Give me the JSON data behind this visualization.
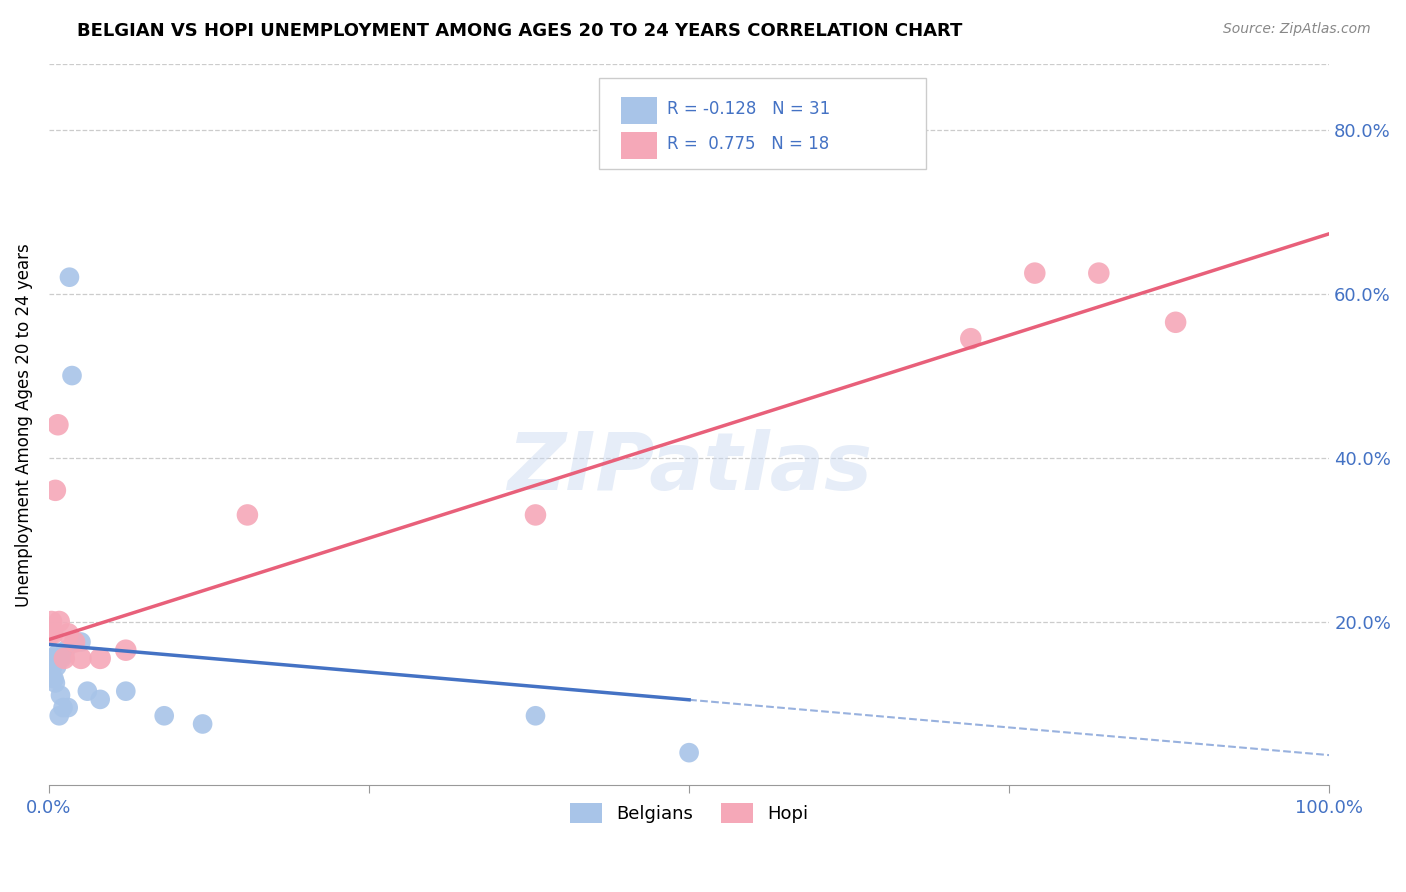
{
  "title": "BELGIAN VS HOPI UNEMPLOYMENT AMONG AGES 20 TO 24 YEARS CORRELATION CHART",
  "source": "Source: ZipAtlas.com",
  "ylabel": "Unemployment Among Ages 20 to 24 years",
  "xlim": [
    0.0,
    1.0
  ],
  "ylim": [
    0.0,
    0.88
  ],
  "belgian_R": -0.128,
  "belgian_N": 31,
  "hopi_R": 0.775,
  "hopi_N": 18,
  "belgian_color": "#a8c4e8",
  "hopi_color": "#f5a8b8",
  "belgian_line_color": "#4472c4",
  "hopi_line_color": "#e8607a",
  "watermark": "ZIPatlas",
  "belgians_x": [
    0.001,
    0.002,
    0.002,
    0.003,
    0.003,
    0.004,
    0.004,
    0.005,
    0.005,
    0.006,
    0.006,
    0.007,
    0.008,
    0.008,
    0.009,
    0.01,
    0.011,
    0.012,
    0.013,
    0.015,
    0.016,
    0.018,
    0.02,
    0.025,
    0.03,
    0.04,
    0.06,
    0.09,
    0.12,
    0.38,
    0.5
  ],
  "belgians_y": [
    0.155,
    0.155,
    0.145,
    0.155,
    0.145,
    0.155,
    0.13,
    0.155,
    0.125,
    0.16,
    0.145,
    0.155,
    0.155,
    0.085,
    0.11,
    0.155,
    0.095,
    0.16,
    0.165,
    0.095,
    0.62,
    0.5,
    0.175,
    0.175,
    0.115,
    0.105,
    0.115,
    0.085,
    0.075,
    0.085,
    0.04
  ],
  "hopi_x": [
    0.001,
    0.002,
    0.003,
    0.005,
    0.007,
    0.008,
    0.012,
    0.015,
    0.02,
    0.025,
    0.04,
    0.06,
    0.155,
    0.38,
    0.72,
    0.77,
    0.82,
    0.88
  ],
  "hopi_y": [
    0.185,
    0.2,
    0.185,
    0.36,
    0.44,
    0.2,
    0.155,
    0.185,
    0.175,
    0.155,
    0.155,
    0.165,
    0.33,
    0.33,
    0.545,
    0.625,
    0.625,
    0.565
  ],
  "belgian_line_x0": 0.0,
  "belgian_line_x_solid_end": 0.5,
  "belgian_line_x_dashed_end": 1.0,
  "belgian_line_y0": 0.172,
  "belgian_line_slope": -0.135,
  "hopi_line_y0": 0.178,
  "hopi_line_slope": 0.495
}
